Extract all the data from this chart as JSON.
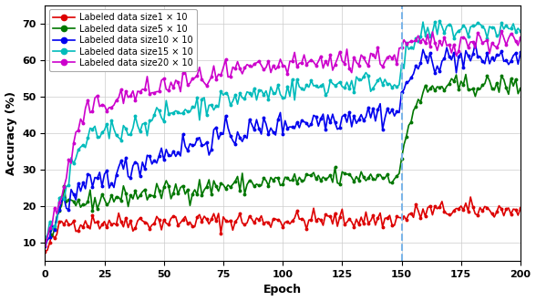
{
  "xlabel": "Epoch",
  "ylabel": "Accuracy (%)",
  "xlim": [
    0,
    200
  ],
  "ylim": [
    5,
    75
  ],
  "yticks": [
    10,
    20,
    30,
    40,
    50,
    60,
    70
  ],
  "xticks": [
    0,
    25,
    50,
    75,
    100,
    125,
    150,
    175,
    200
  ],
  "vline_x": 150,
  "vline_color": "#7ab4e8",
  "vline_style": "--",
  "n_epochs": 201,
  "series": [
    {
      "label": "Labeled data size1 × 10",
      "color": "#dd0000",
      "phase1_base": 15.5,
      "phase1_end": 16.5,
      "phase2_val": 18.5,
      "noise": 1.4,
      "initial_drop": 7.0,
      "rise_speed": 0.6
    },
    {
      "label": "Labeled data size5 × 10",
      "color": "#007700",
      "phase1_base": 21.0,
      "phase1_end": 31.0,
      "phase2_val": 52.0,
      "noise": 1.5,
      "initial_drop": 9.0,
      "rise_speed": 0.5
    },
    {
      "label": "Labeled data size10 × 10",
      "color": "#0000ee",
      "phase1_base": 21.0,
      "phase1_end": 49.0,
      "phase2_val": 60.0,
      "noise": 2.0,
      "initial_drop": 9.0,
      "rise_speed": 0.4
    },
    {
      "label": "Labeled data size15 × 10",
      "color": "#00bbbb",
      "phase1_base": 22.0,
      "phase1_end": 57.0,
      "phase2_val": 68.0,
      "noise": 1.6,
      "initial_drop": 9.5,
      "rise_speed": 0.35
    },
    {
      "label": "Labeled data size20 × 10",
      "color": "#cc00cc",
      "phase1_base": 23.0,
      "phase1_end": 63.0,
      "phase2_val": 65.5,
      "noise": 1.7,
      "initial_drop": 10.0,
      "rise_speed": 0.32
    }
  ],
  "figsize": [
    5.88,
    3.3
  ],
  "dpi": 100,
  "bg_color": "#ffffff",
  "grid_color": "#cccccc",
  "legend_fontsize": 7.0,
  "axis_fontsize": 9,
  "tick_fontsize": 8
}
